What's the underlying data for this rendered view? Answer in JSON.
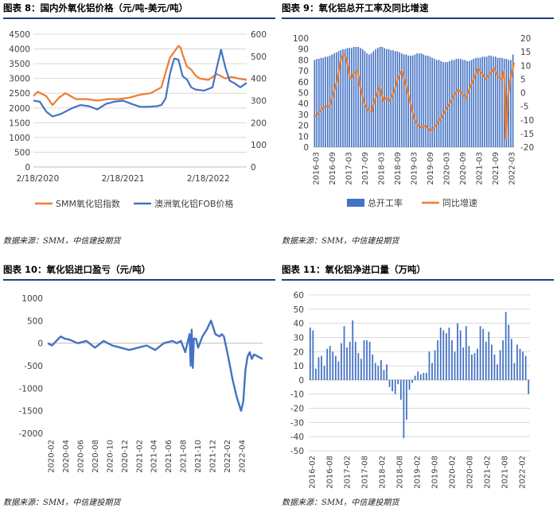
{
  "source_text": "数据来源：SMM，中信建投期货",
  "chart_data": [
    {
      "id": "c8",
      "type": "line",
      "title": "图表 8：国内外氧化铝价格（元/吨-美元/吨）",
      "x_ticks": [
        "2/18/2020",
        "2/18/2021",
        "2/18/2022"
      ],
      "y_left": {
        "min": 0,
        "max": 4500,
        "step": 500
      },
      "y_right": {
        "min": 0,
        "max": 600,
        "step": 100
      },
      "grid": true,
      "legend_position": "bottom",
      "series": [
        {
          "name": "SMM氧化铝指数",
          "axis": "left",
          "color": "#ED7D31",
          "x": [
            0,
            0.02,
            0.06,
            0.09,
            0.12,
            0.15,
            0.2,
            0.25,
            0.3,
            0.35,
            0.4,
            0.45,
            0.5,
            0.55,
            0.6,
            0.62,
            0.64,
            0.66,
            0.68,
            0.69,
            0.7,
            0.72,
            0.74,
            0.76,
            0.78,
            0.82,
            0.86,
            0.9,
            0.93,
            0.96,
            1.0
          ],
          "y": [
            2400,
            2550,
            2400,
            2100,
            2350,
            2500,
            2300,
            2300,
            2250,
            2300,
            2300,
            2350,
            2450,
            2500,
            2700,
            3200,
            3700,
            3900,
            4100,
            4050,
            3800,
            3400,
            3300,
            3100,
            3000,
            2950,
            3150,
            3000,
            3050,
            3000,
            2950
          ]
        },
        {
          "name": "澳洲氧化铝FOB价格",
          "axis": "right",
          "color": "#4472C4",
          "x": [
            0,
            0.03,
            0.06,
            0.09,
            0.13,
            0.18,
            0.22,
            0.26,
            0.3,
            0.34,
            0.38,
            0.42,
            0.46,
            0.5,
            0.54,
            0.58,
            0.6,
            0.62,
            0.64,
            0.66,
            0.68,
            0.7,
            0.72,
            0.74,
            0.76,
            0.8,
            0.84,
            0.86,
            0.88,
            0.9,
            0.92,
            0.94,
            0.97,
            1.0
          ],
          "y": [
            300,
            295,
            250,
            228,
            240,
            265,
            280,
            275,
            260,
            285,
            295,
            300,
            285,
            272,
            272,
            275,
            280,
            310,
            420,
            490,
            485,
            410,
            395,
            360,
            350,
            345,
            360,
            450,
            530,
            450,
            390,
            380,
            360,
            380
          ]
        }
      ]
    },
    {
      "id": "c9",
      "type": "bar+line",
      "title": "图表 9：氧化铝总开工率及同比增速",
      "x_ticks": [
        "2016-03",
        "2016-09",
        "2017-03",
        "2017-09",
        "2018-03",
        "2018-09",
        "2019-03",
        "2019-09",
        "2020-03",
        "2020-09",
        "2021-03",
        "2021-09",
        "2022-03"
      ],
      "y_left": {
        "min": 0,
        "max": 100,
        "step": 10
      },
      "y_right": {
        "min": -20,
        "max": 20,
        "step": 5
      },
      "legend_position": "bottom",
      "series": [
        {
          "name": "总开工率",
          "kind": "bar",
          "axis": "left",
          "color": "#4472C4",
          "values": [
            80,
            81,
            81,
            82,
            82,
            83,
            83,
            84,
            85,
            86,
            87,
            88,
            89,
            90,
            90,
            91,
            91,
            91,
            92,
            92,
            92,
            91,
            90,
            88,
            86,
            85,
            86,
            88,
            90,
            91,
            92,
            92,
            91,
            90,
            90,
            89,
            89,
            88,
            88,
            87,
            86,
            85,
            85,
            84,
            84,
            84,
            85,
            86,
            86,
            86,
            85,
            84,
            84,
            83,
            82,
            81,
            80,
            80,
            79,
            78,
            78,
            78,
            79,
            80,
            80,
            81,
            81,
            81,
            80,
            80,
            79,
            79,
            80,
            81,
            82,
            82,
            82,
            83,
            83,
            83,
            84,
            84,
            83,
            83,
            82,
            82,
            82,
            81,
            81,
            80,
            80,
            85
          ]
        },
        {
          "name": "同比增速",
          "kind": "line",
          "axis": "right",
          "color": "#ED7D31",
          "x": [
            0,
            0.02,
            0.04,
            0.06,
            0.08,
            0.1,
            0.12,
            0.13,
            0.14,
            0.15,
            0.16,
            0.17,
            0.18,
            0.19,
            0.2,
            0.22,
            0.23,
            0.24,
            0.25,
            0.26,
            0.27,
            0.28,
            0.29,
            0.3,
            0.32,
            0.33,
            0.34,
            0.35,
            0.36,
            0.38,
            0.4,
            0.42,
            0.44,
            0.46,
            0.48,
            0.5,
            0.52,
            0.54,
            0.56,
            0.58,
            0.6,
            0.62,
            0.64,
            0.66,
            0.68,
            0.7,
            0.72,
            0.74,
            0.76,
            0.78,
            0.8,
            0.82,
            0.84,
            0.86,
            0.88,
            0.9,
            0.92,
            0.94,
            0.95,
            0.96,
            0.97,
            0.98,
            1.0
          ],
          "y": [
            -9,
            -8,
            -6,
            -5,
            -5,
            0,
            5,
            10,
            13,
            14,
            13,
            10,
            6,
            5,
            7,
            8,
            3,
            0,
            -3,
            -5,
            -6,
            -7,
            -7,
            -4,
            0,
            2,
            -1,
            -3,
            -2,
            -3,
            0,
            5,
            8,
            3,
            -3,
            -9,
            -12,
            -13,
            -12,
            -14,
            -13,
            -11,
            -9,
            -6,
            -4,
            -1,
            1,
            0,
            -2,
            2,
            5,
            9,
            7,
            5,
            7,
            9,
            6,
            5,
            8,
            -17,
            -2,
            4,
            11
          ]
        }
      ]
    },
    {
      "id": "c10",
      "type": "line",
      "title": "图表 10：氧化铝进口盈亏（元/吨）",
      "x_ticks": [
        "2020-02",
        "2020-04",
        "2020-06",
        "2020-08",
        "2020-10",
        "2020-12",
        "2021-02",
        "2021-04",
        "2021-06",
        "2021-08",
        "2021-10",
        "2021-12",
        "2022-02",
        "2022-04"
      ],
      "y_left": {
        "min": -2000,
        "max": 1000,
        "step": 500
      },
      "series": [
        {
          "name": "进口盈亏",
          "axis": "left",
          "color": "#4472C4",
          "x": [
            0,
            0.02,
            0.04,
            0.06,
            0.08,
            0.1,
            0.14,
            0.18,
            0.22,
            0.26,
            0.3,
            0.34,
            0.38,
            0.42,
            0.46,
            0.5,
            0.54,
            0.58,
            0.6,
            0.62,
            0.64,
            0.66,
            0.665,
            0.67,
            0.675,
            0.68,
            0.69,
            0.7,
            0.72,
            0.74,
            0.76,
            0.78,
            0.8,
            0.81,
            0.82,
            0.84,
            0.86,
            0.88,
            0.9,
            0.91,
            0.92,
            0.93,
            0.94,
            0.95,
            0.96,
            0.98,
            1.0
          ],
          "y": [
            0,
            -50,
            50,
            150,
            100,
            80,
            0,
            50,
            -100,
            50,
            -50,
            -100,
            -150,
            -100,
            -50,
            -150,
            0,
            50,
            0,
            50,
            -200,
            200,
            -500,
            300,
            -550,
            100,
            100,
            -100,
            150,
            300,
            500,
            200,
            150,
            200,
            150,
            -300,
            -800,
            -1200,
            -1500,
            -1300,
            -600,
            -300,
            -200,
            -350,
            -250,
            -300,
            -350
          ]
        }
      ]
    },
    {
      "id": "c11",
      "type": "bar",
      "title": "图表 11：氧化铝净进口量（万吨）",
      "x_ticks": [
        "2016-02",
        "2016-08",
        "2017-02",
        "2017-08",
        "2018-02",
        "2018-08",
        "2019-02",
        "2019-08",
        "2020-02",
        "2020-08",
        "2021-02",
        "2021-08",
        "2022-02"
      ],
      "y_left": {
        "min": -50,
        "max": 60,
        "step": 10
      },
      "series": [
        {
          "name": "净进口量",
          "color": "#4472C4",
          "values": [
            37,
            35,
            8,
            16,
            17,
            10,
            22,
            24,
            20,
            17,
            13,
            26,
            38,
            23,
            27,
            42,
            27,
            19,
            15,
            28,
            28,
            27,
            18,
            12,
            10,
            14,
            7,
            11,
            -5,
            -8,
            -10,
            -3,
            -14,
            -41,
            -28,
            -7,
            -2,
            3,
            6,
            4,
            5,
            5,
            20,
            12,
            21,
            28,
            37,
            35,
            33,
            37,
            28,
            20,
            40,
            35,
            23,
            38,
            24,
            18,
            19,
            22,
            38,
            36,
            27,
            34,
            25,
            18,
            11,
            21,
            28,
            48,
            39,
            29,
            12,
            25,
            22,
            20,
            17,
            -10
          ]
        }
      ]
    }
  ]
}
